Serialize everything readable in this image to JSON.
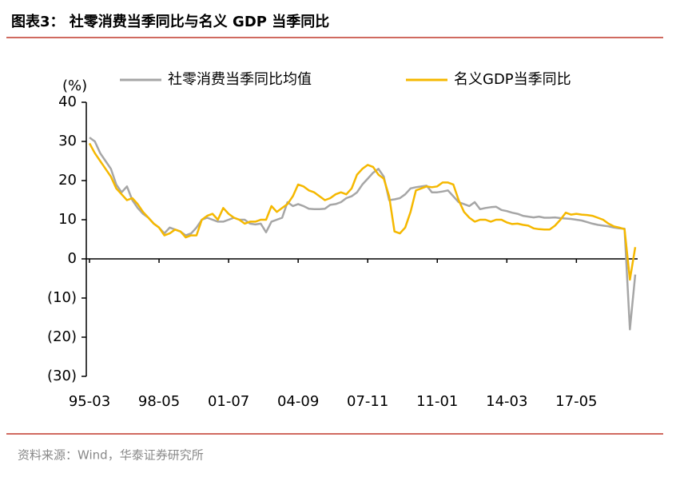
{
  "chart_data": {
    "type": "line",
    "title": "图表3： 社零消费当季同比与名义 GDP 当季同比",
    "y_label": "(%)",
    "source": "资料来源：Wind，华泰证券研究所",
    "categories": [
      "95-03",
      null,
      null,
      null,
      null,
      null,
      null,
      null,
      null,
      null,
      null,
      null,
      null,
      "98-05",
      null,
      null,
      null,
      null,
      null,
      null,
      null,
      null,
      null,
      null,
      null,
      null,
      "01-07",
      null,
      null,
      null,
      null,
      null,
      null,
      null,
      null,
      null,
      null,
      null,
      null,
      "04-09",
      null,
      null,
      null,
      null,
      null,
      null,
      null,
      null,
      null,
      null,
      null,
      null,
      "07-11",
      null,
      null,
      null,
      null,
      null,
      null,
      null,
      null,
      null,
      null,
      null,
      null,
      "11-01",
      null,
      null,
      null,
      null,
      null,
      null,
      null,
      null,
      null,
      null,
      null,
      null,
      "14-03",
      null,
      null,
      null,
      null,
      null,
      null,
      null,
      null,
      null,
      null,
      null,
      null,
      "17-05",
      null,
      null,
      null,
      null,
      null,
      null,
      null,
      null,
      null,
      null,
      null
    ],
    "series": [
      {
        "name": "社零消费当季同比均值",
        "color": "#a6a6a6",
        "values": [
          31,
          30,
          27,
          25,
          23,
          19,
          17,
          18.5,
          15,
          13,
          11.5,
          10.5,
          9,
          8,
          6.5,
          8,
          7.5,
          7,
          6,
          6.5,
          8,
          10,
          10.5,
          10,
          9.5,
          9.5,
          10,
          10.5,
          10,
          10,
          9,
          8.8,
          9,
          6.8,
          9.5,
          10,
          10.5,
          14.5,
          13.5,
          14,
          13.5,
          12.8,
          12.7,
          12.7,
          12.8,
          13.8,
          14,
          14.5,
          15.5,
          16,
          17,
          19,
          20.5,
          22,
          23,
          21,
          15,
          15.2,
          15.5,
          16.5,
          18,
          18.3,
          18.5,
          18.7,
          17,
          17,
          17.2,
          17.5,
          16,
          14.5,
          14,
          13.5,
          14.5,
          12.7,
          13,
          13.2,
          13.3,
          12.5,
          12.2,
          11.8,
          11.5,
          11,
          10.8,
          10.6,
          10.8,
          10.5,
          10.5,
          10.6,
          10.4,
          10.3,
          10.2,
          10,
          9.8,
          9.4,
          9,
          8.7,
          8.5,
          8.3,
          8,
          7.8,
          7.7,
          -18,
          -4
        ]
      },
      {
        "name": "名义GDP当季同比",
        "color": "#f5b800",
        "values": [
          29.5,
          27,
          25,
          23,
          21,
          18,
          16.5,
          15,
          15.5,
          14,
          12,
          10.5,
          9,
          8,
          6,
          6.5,
          7.5,
          7,
          5.5,
          6,
          6,
          10,
          11,
          11.5,
          10,
          13,
          11.5,
          10.5,
          10,
          9,
          9.5,
          9.5,
          10,
          10,
          13.5,
          12,
          13,
          14,
          16,
          19,
          18.5,
          17.5,
          17,
          16,
          15,
          15.5,
          16.5,
          17,
          16.5,
          18,
          21.5,
          23,
          24,
          23.5,
          21.5,
          20.5,
          16,
          7,
          6.5,
          8,
          12,
          17.5,
          18,
          18.5,
          18.3,
          18.5,
          19.5,
          19.5,
          19,
          15,
          12,
          10.5,
          9.5,
          10,
          10,
          9.5,
          10,
          10,
          9.3,
          8.9,
          9,
          8.7,
          8.5,
          7.8,
          7.6,
          7.5,
          7.5,
          8.5,
          10,
          11.8,
          11.3,
          11.5,
          11.3,
          11.2,
          11,
          10.5,
          10,
          9,
          8.3,
          8,
          7.6,
          -5.3,
          3
        ]
      }
    ],
    "ylim": [
      -30,
      40
    ],
    "yticks": [
      {
        "value": -30,
        "label": "(30)"
      },
      {
        "value": -20,
        "label": "(20)"
      },
      {
        "value": -10,
        "label": "(10)"
      },
      0,
      10,
      20,
      30,
      40
    ],
    "legend": "top"
  }
}
